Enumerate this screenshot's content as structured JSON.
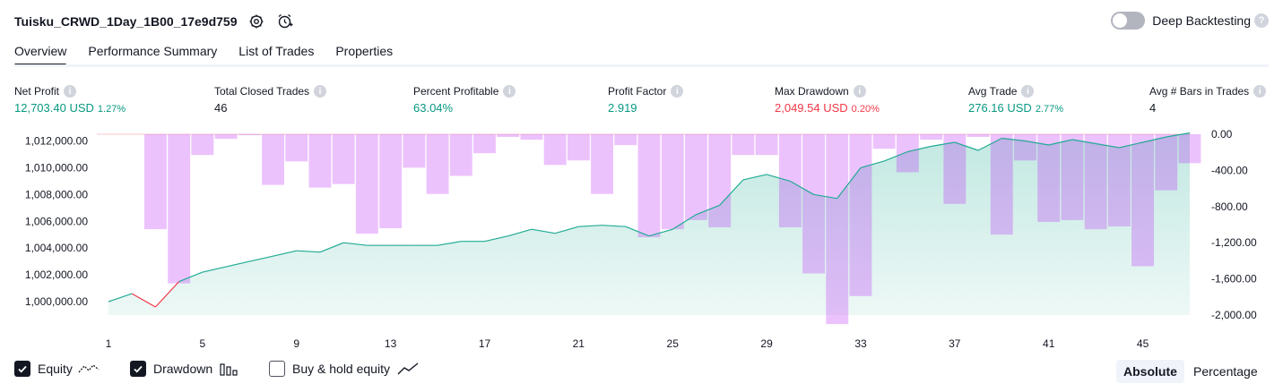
{
  "header": {
    "strategy_name": "Tuisku_CRWD_1Day_1B00_17e9d759",
    "deep_backtesting_label": "Deep Backtesting",
    "deep_backtesting_on": false
  },
  "tabs": [
    {
      "label": "Overview",
      "active": true
    },
    {
      "label": "Performance Summary",
      "active": false
    },
    {
      "label": "List of Trades",
      "active": false
    },
    {
      "label": "Properties",
      "active": false
    }
  ],
  "metrics": [
    {
      "label": "Net Profit",
      "value": "12,703.40 USD",
      "sub": "1.27%",
      "color": "#089981"
    },
    {
      "label": "Total Closed Trades",
      "value": "46",
      "sub": "",
      "color": "#131722"
    },
    {
      "label": "Percent Profitable",
      "value": "63.04%",
      "sub": "",
      "color": "#089981"
    },
    {
      "label": "Profit Factor",
      "value": "2.919",
      "sub": "",
      "color": "#089981"
    },
    {
      "label": "Max Drawdown",
      "value": "2,049.54 USD",
      "sub": "0.20%",
      "color": "#f23645"
    },
    {
      "label": "Avg Trade",
      "value": "276.16 USD",
      "sub": "2.77%",
      "color": "#089981"
    },
    {
      "label": "Avg # Bars in Trades",
      "value": "4",
      "sub": "",
      "color": "#131722"
    }
  ],
  "chart_data": {
    "type": "line",
    "x": [
      1,
      2,
      3,
      4,
      5,
      6,
      7,
      8,
      9,
      10,
      11,
      12,
      13,
      14,
      15,
      16,
      17,
      18,
      19,
      20,
      21,
      22,
      23,
      24,
      25,
      26,
      27,
      28,
      29,
      30,
      31,
      32,
      33,
      34,
      35,
      36,
      37,
      38,
      39,
      40,
      41,
      42,
      43,
      44,
      45,
      46,
      47
    ],
    "x_tick_labels": [
      "1",
      "5",
      "9",
      "13",
      "17",
      "21",
      "25",
      "29",
      "33",
      "37",
      "41",
      "45"
    ],
    "y_left_ticks": [
      "1,012,000.00",
      "1,010,000.00",
      "1,008,000.00",
      "1,006,000.00",
      "1,004,000.00",
      "1,002,000.00",
      "1,000,000.00"
    ],
    "y_right_ticks": [
      "0.00",
      "-400.00",
      "-800.00",
      "-1,200.00",
      "-1,600.00",
      "-2,000.00"
    ],
    "ylim_left": [
      999000,
      1012500
    ],
    "ylim_right": [
      -2000,
      0
    ],
    "series": [
      {
        "name": "Equity",
        "axis": "left",
        "color": "#22ab94",
        "values": [
          1000000,
          1000600,
          999600,
          1001500,
          1002200,
          1002600,
          1003000,
          1003400,
          1003800,
          1003700,
          1004400,
          1004200,
          1004200,
          1004200,
          1004200,
          1004500,
          1004500,
          1004900,
          1005400,
          1005100,
          1005600,
          1005700,
          1005600,
          1004900,
          1005400,
          1006500,
          1007200,
          1009100,
          1009500,
          1009000,
          1008000,
          1007700,
          1010000,
          1010500,
          1011200,
          1011600,
          1011900,
          1011300,
          1012200,
          1012000,
          1011700,
          1012100,
          1011800,
          1011500,
          1011900,
          1012300,
          1012600
        ]
      },
      {
        "name": "Drawdown",
        "axis": "right",
        "color": "#b71cf6",
        "values": [
          0,
          0,
          -1050,
          -1650,
          -230,
          -50,
          -10,
          -560,
          -300,
          -590,
          -550,
          -1100,
          -1040,
          -370,
          -660,
          -460,
          -210,
          -30,
          -60,
          -340,
          -290,
          -660,
          -120,
          -1140,
          -1050,
          -950,
          -1030,
          -230,
          -230,
          -1030,
          -1540,
          -2100,
          -1790,
          -160,
          -420,
          -60,
          -770,
          -30,
          -1110,
          -290,
          -970,
          -950,
          -1050,
          -1020,
          -1460,
          -620,
          -320
        ]
      }
    ],
    "legend": [
      "Equity",
      "Drawdown",
      "Buy & hold equity"
    ],
    "legend_checked": [
      true,
      true,
      false
    ]
  },
  "footer": {
    "equity_label": "Equity",
    "drawdown_label": "Drawdown",
    "buyhold_label": "Buy & hold equity",
    "absolute_label": "Absolute",
    "percentage_label": "Percentage"
  }
}
